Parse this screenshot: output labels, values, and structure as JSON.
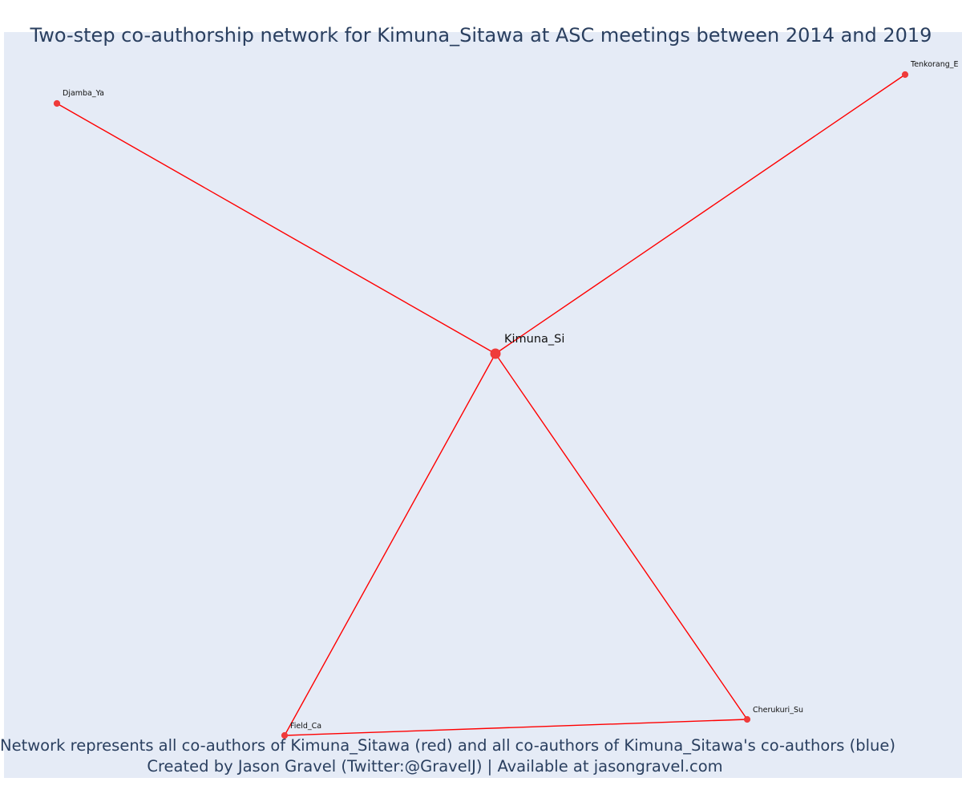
{
  "title": "Two-step co-authorship network for Kimuna_Sitawa at ASC meetings between 2014 and 2019",
  "footer": {
    "line1": "Network represents all co-authors of Kimuna_Sitawa (red) and all co-authors of Kimuna_Sitawa's co-authors (blue)",
    "line2": "Created by Jason Gravel (Twitter:@GravelJ) | Available at jasongravel.com"
  },
  "colors": {
    "background": "#e5ebf6",
    "edge": "#ff0000",
    "node": "#ef3b3b",
    "text": "#2a3f5f"
  },
  "network": {
    "center": "Kimuna_Si",
    "nodes": [
      {
        "id": "Kimuna_Si",
        "label": "Kimuna_Si",
        "role": "focal"
      },
      {
        "id": "Djamba_Ya",
        "label": "Djamba_Ya",
        "role": "co-author"
      },
      {
        "id": "Tenkorang_E",
        "label": "Tenkorang_E",
        "role": "co-author"
      },
      {
        "id": "Field_Ca",
        "label": "Field_Ca",
        "role": "co-author"
      },
      {
        "id": "Cherukuri_Su",
        "label": "Cherukuri_Su",
        "role": "co-author"
      }
    ],
    "edges": [
      [
        "Kimuna_Si",
        "Djamba_Ya"
      ],
      [
        "Kimuna_Si",
        "Tenkorang_E"
      ],
      [
        "Kimuna_Si",
        "Field_Ca"
      ],
      [
        "Kimuna_Si",
        "Cherukuri_Su"
      ],
      [
        "Field_Ca",
        "Cherukuri_Su"
      ]
    ]
  }
}
